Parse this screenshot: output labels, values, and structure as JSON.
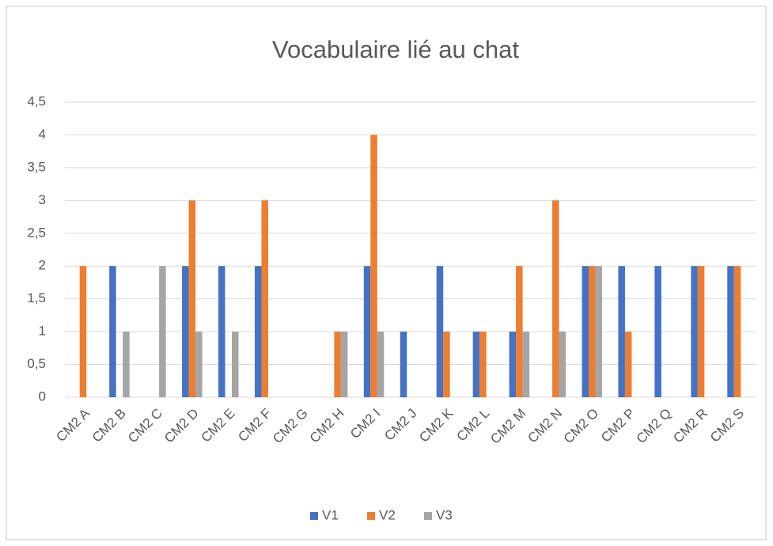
{
  "chart_data": {
    "type": "bar",
    "title": "Vocabulaire lié au chat",
    "categories": [
      "CM2 A",
      "CM2 B",
      "CM2 C",
      "CM2 D",
      "CM2 E",
      "CM2 F",
      "CM2 G",
      "CM2 H",
      "CM2 I",
      "CM2 J",
      "CM2 K",
      "CM2 L",
      "CM2 M",
      "CM2 N",
      "CM2 O",
      "CM2 P",
      "CM2 Q",
      "CM2 R",
      "CM2 S"
    ],
    "series": [
      {
        "name": "V1",
        "color": "#4472c4",
        "values": [
          0,
          2,
          0,
          2,
          2,
          2,
          0,
          0,
          2,
          1,
          2,
          1,
          1,
          0,
          2,
          2,
          2,
          2,
          2
        ]
      },
      {
        "name": "V2",
        "color": "#ed7d31",
        "values": [
          2,
          0,
          0,
          3,
          0,
          3,
          0,
          1,
          4,
          0,
          1,
          1,
          2,
          3,
          2,
          1,
          0,
          2,
          2
        ]
      },
      {
        "name": "V3",
        "color": "#a5a5a5",
        "values": [
          0,
          1,
          2,
          1,
          1,
          0,
          0,
          1,
          1,
          0,
          0,
          0,
          1,
          1,
          2,
          0,
          0,
          0,
          0
        ]
      }
    ],
    "ylim": [
      0,
      4.5
    ],
    "yticks": [
      0,
      {
        "value": 0.5,
        "label": "0,5"
      },
      1,
      {
        "value": 1.5,
        "label": "1,5"
      },
      2,
      {
        "value": 2.5,
        "label": "2,5"
      },
      3,
      {
        "value": 3.5,
        "label": "3,5"
      },
      4,
      {
        "value": 4.5,
        "label": "4,5"
      }
    ],
    "grid": true,
    "legend": "bottom"
  }
}
